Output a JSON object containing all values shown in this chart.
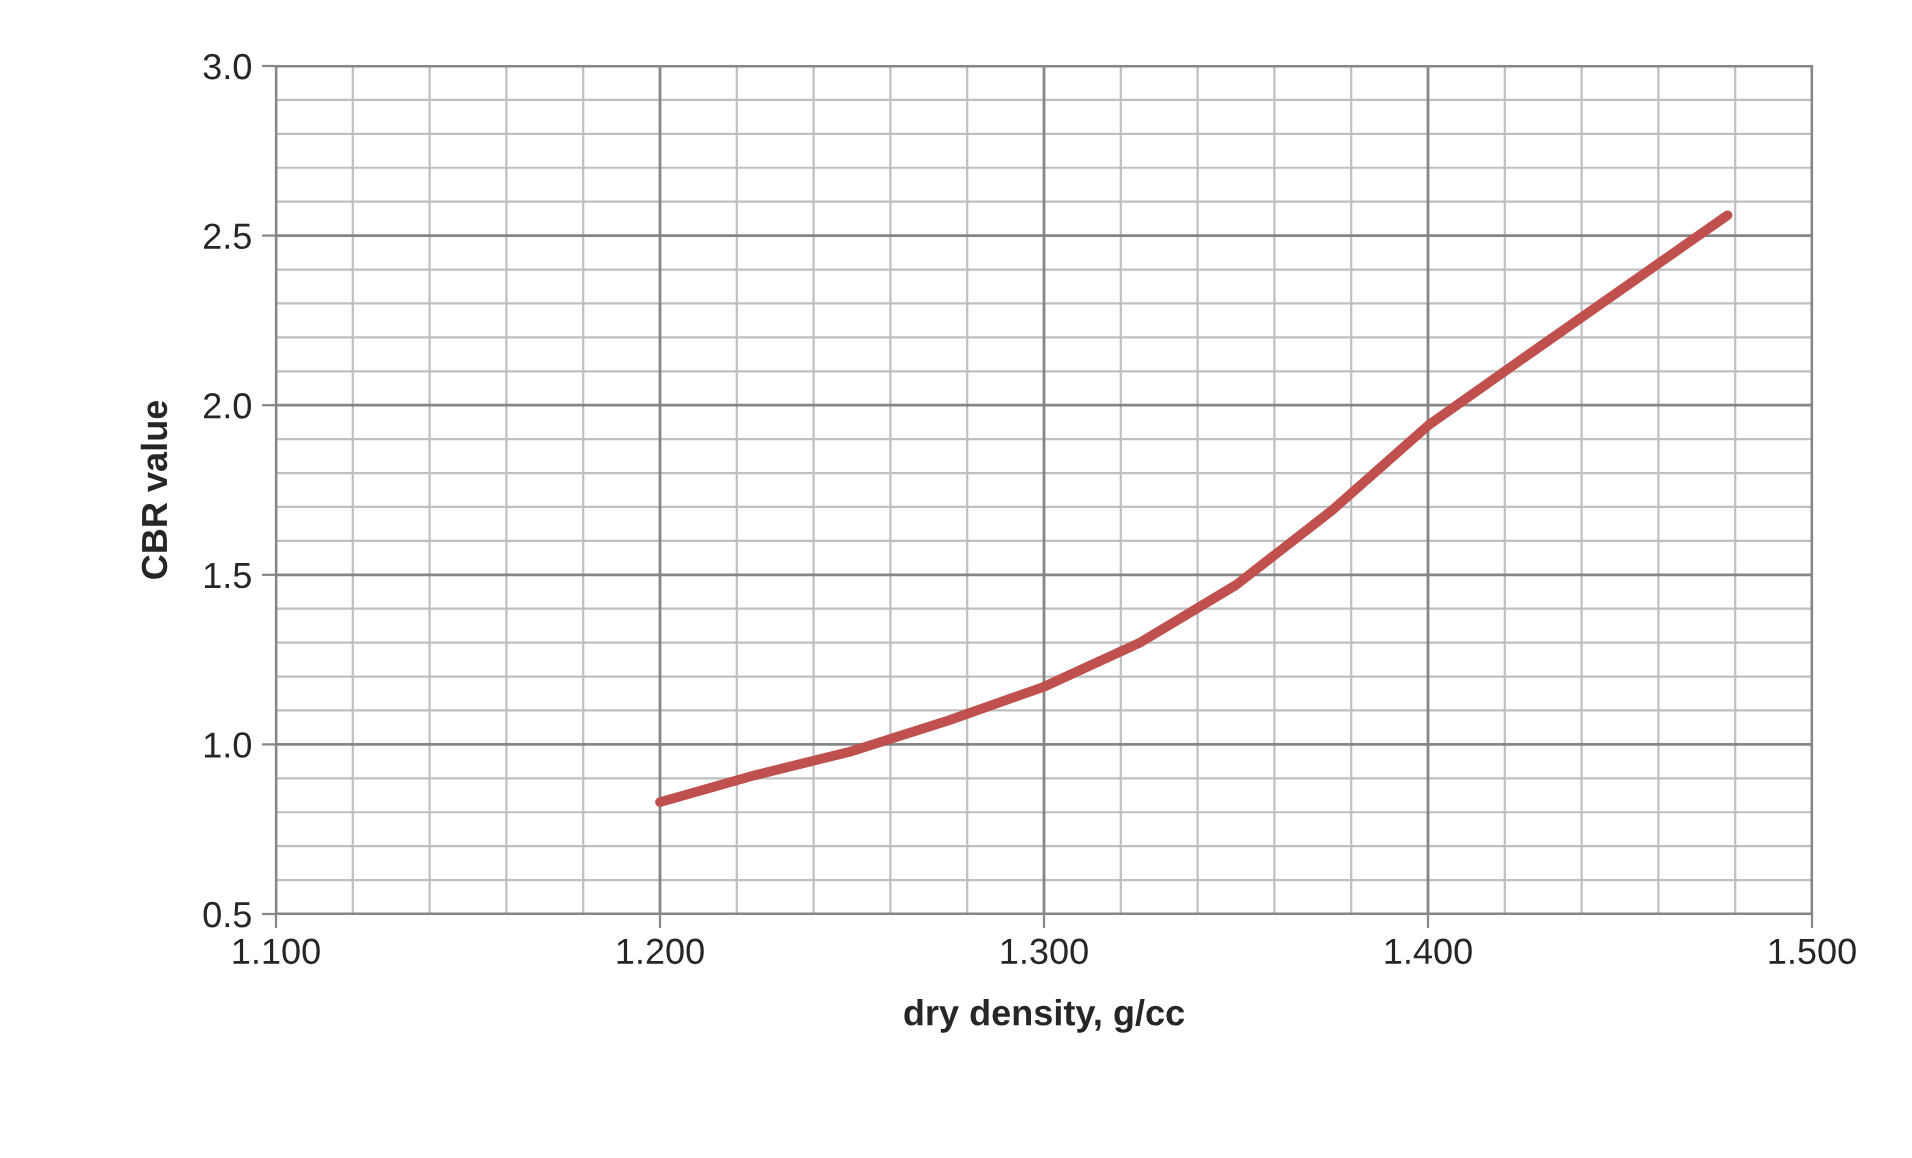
{
  "chart_data": {
    "type": "line",
    "xlabel": "dry density, g/cc",
    "ylabel": "CBR value",
    "series": [
      {
        "color": "#c0504d",
        "x": [
          1.2,
          1.225,
          1.25,
          1.275,
          1.3,
          1.325,
          1.35,
          1.375,
          1.4,
          1.425,
          1.478
        ],
        "values": [
          0.83,
          0.91,
          0.98,
          1.07,
          1.17,
          1.3,
          1.47,
          1.69,
          1.94,
          2.14,
          2.56
        ]
      }
    ],
    "xlim": [
      1.1,
      1.5
    ],
    "xticks": [
      {
        "value": 1.1,
        "label": "1.100"
      },
      {
        "value": 1.2,
        "label": "1.200"
      },
      {
        "value": 1.3,
        "label": "1.300"
      },
      {
        "value": 1.4,
        "label": "1.400"
      },
      {
        "value": 1.5,
        "label": "1.500"
      }
    ],
    "ylim": [
      0.5,
      3.0
    ],
    "yticks": [
      {
        "value": 0.5,
        "label": "0.5"
      },
      {
        "value": 1.0,
        "label": "1.0"
      },
      {
        "value": 1.5,
        "label": "1.5"
      },
      {
        "value": 2.0,
        "label": "2.0"
      },
      {
        "value": 2.5,
        "label": "2.5"
      },
      {
        "value": 3.0,
        "label": "3.0"
      }
    ],
    "grid": true,
    "line_style": "solid",
    "marker": "none",
    "legend": false
  }
}
